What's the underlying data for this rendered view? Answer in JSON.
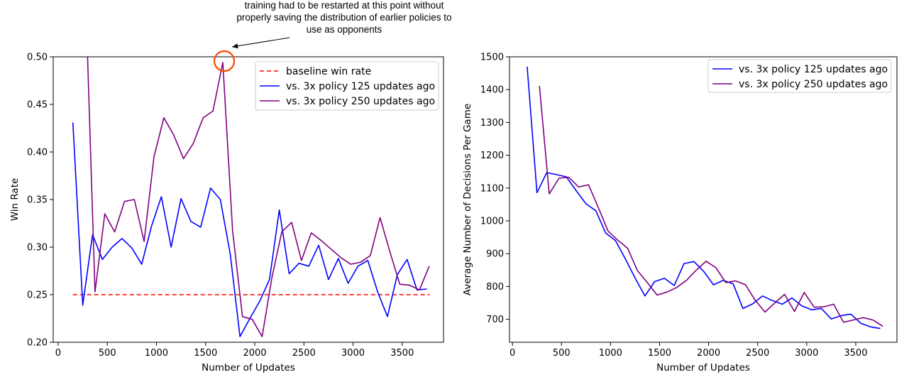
{
  "chart_data": [
    {
      "type": "line",
      "title": "",
      "xlabel": "Number of Updates",
      "ylabel": "Win Rate",
      "xlim": [
        -50,
        3920
      ],
      "ylim": [
        0.2,
        0.5
      ],
      "xticks": [
        0,
        500,
        1000,
        1500,
        2000,
        2500,
        3000,
        3500
      ],
      "yticks": [
        0.2,
        0.25,
        0.3,
        0.35,
        0.4,
        0.45,
        0.5
      ],
      "ytick_labels": [
        "0.20",
        "0.25",
        "0.30",
        "0.35",
        "0.40",
        "0.45",
        "0.50"
      ],
      "grid": false,
      "legend_position": "top-right",
      "series": [
        {
          "name": "baseline win rate",
          "color": "#ff0000",
          "dash": true,
          "x": [
            150,
            3780
          ],
          "y": [
            0.25,
            0.25
          ]
        },
        {
          "name": "vs. 3x policy 125 updates ago",
          "color": "#0000ff",
          "dash": false,
          "x": [
            150,
            250,
            350,
            450,
            550,
            650,
            750,
            850,
            950,
            1050,
            1150,
            1250,
            1350,
            1450,
            1550,
            1650,
            1750,
            1850,
            1950,
            2050,
            2150,
            2250,
            2350,
            2450,
            2550,
            2650,
            2750,
            2850,
            2950,
            3050,
            3150,
            3250,
            3350,
            3450,
            3550,
            3650,
            3750
          ],
          "y": [
            0.431,
            0.239,
            0.313,
            0.287,
            0.3,
            0.309,
            0.299,
            0.282,
            0.322,
            0.353,
            0.3,
            0.351,
            0.327,
            0.321,
            0.362,
            0.35,
            0.293,
            0.206,
            0.225,
            0.243,
            0.266,
            0.339,
            0.272,
            0.283,
            0.28,
            0.302,
            0.266,
            0.288,
            0.262,
            0.28,
            0.286,
            0.253,
            0.227,
            0.271,
            0.287,
            0.255,
            0.256
          ]
        },
        {
          "name": "vs. 3x policy 250 updates ago",
          "color": "#800080",
          "dash": false,
          "x": [
            275,
            375,
            475,
            575,
            675,
            775,
            875,
            975,
            1075,
            1175,
            1275,
            1375,
            1475,
            1575,
            1675,
            1775,
            1875,
            1975,
            2075,
            2175,
            2275,
            2375,
            2475,
            2575,
            2675,
            2775,
            2875,
            2975,
            3075,
            3175,
            3275,
            3375,
            3475,
            3575,
            3675,
            3775
          ],
          "y": [
            0.58,
            0.253,
            0.335,
            0.316,
            0.348,
            0.35,
            0.306,
            0.395,
            0.436,
            0.418,
            0.393,
            0.409,
            0.436,
            0.443,
            0.494,
            0.317,
            0.227,
            0.224,
            0.206,
            0.268,
            0.316,
            0.326,
            0.286,
            0.315,
            0.307,
            0.298,
            0.289,
            0.282,
            0.284,
            0.291,
            0.331,
            0.295,
            0.261,
            0.26,
            0.255,
            0.28
          ]
        }
      ],
      "annotation": {
        "lines": [
          "training had to be restarted at this point without",
          "properly saving the distribution of earlier policies to",
          "use as opponents"
        ],
        "point": [
          1690,
          0.4955
        ],
        "marker_color": "#ff4500"
      }
    },
    {
      "type": "line",
      "title": "",
      "xlabel": "Number of Updates",
      "ylabel": "Average Number of Decisions Per Game",
      "xlim": [
        -30,
        3920
      ],
      "ylim": [
        630,
        1500
      ],
      "xticks": [
        0,
        500,
        1000,
        1500,
        2000,
        2500,
        3000,
        3500
      ],
      "yticks": [
        700,
        800,
        900,
        1000,
        1100,
        1200,
        1300,
        1400,
        1500
      ],
      "ytick_labels": [
        "700",
        "800",
        "900",
        "1000",
        "1100",
        "1200",
        "1300",
        "1400",
        "1500"
      ],
      "grid": false,
      "legend_position": "top-right",
      "series": [
        {
          "name": "vs. 3x policy 125 updates ago",
          "color": "#0000ff",
          "x": [
            150,
            250,
            350,
            450,
            550,
            650,
            750,
            850,
            950,
            1050,
            1150,
            1250,
            1350,
            1450,
            1550,
            1650,
            1750,
            1850,
            1950,
            2050,
            2150,
            2250,
            2350,
            2450,
            2550,
            2650,
            2750,
            2850,
            2950,
            3050,
            3150,
            3250,
            3350,
            3450,
            3550,
            3650,
            3750
          ],
          "y": [
            1470,
            1086,
            1147,
            1141,
            1134,
            1092,
            1052,
            1031,
            963,
            940,
            885,
            826,
            771,
            815,
            825,
            803,
            870,
            876,
            846,
            805,
            819,
            808,
            733,
            747,
            771,
            757,
            746,
            765,
            741,
            729,
            733,
            701,
            711,
            716,
            688,
            677,
            672
          ]
        },
        {
          "name": "vs. 3x policy 250 updates ago",
          "color": "#800080",
          "x": [
            275,
            375,
            475,
            575,
            675,
            775,
            875,
            975,
            1075,
            1175,
            1275,
            1375,
            1475,
            1575,
            1675,
            1775,
            1875,
            1975,
            2075,
            2175,
            2275,
            2375,
            2475,
            2575,
            2675,
            2775,
            2875,
            2975,
            3075,
            3175,
            3275,
            3375,
            3475,
            3575,
            3675,
            3775
          ],
          "y": [
            1411,
            1082,
            1130,
            1133,
            1103,
            1110,
            1041,
            969,
            941,
            916,
            848,
            812,
            774,
            783,
            797,
            819,
            850,
            877,
            857,
            812,
            817,
            806,
            758,
            722,
            750,
            776,
            724,
            782,
            737,
            738,
            746,
            691,
            698,
            705,
            698,
            679
          ]
        }
      ]
    }
  ]
}
